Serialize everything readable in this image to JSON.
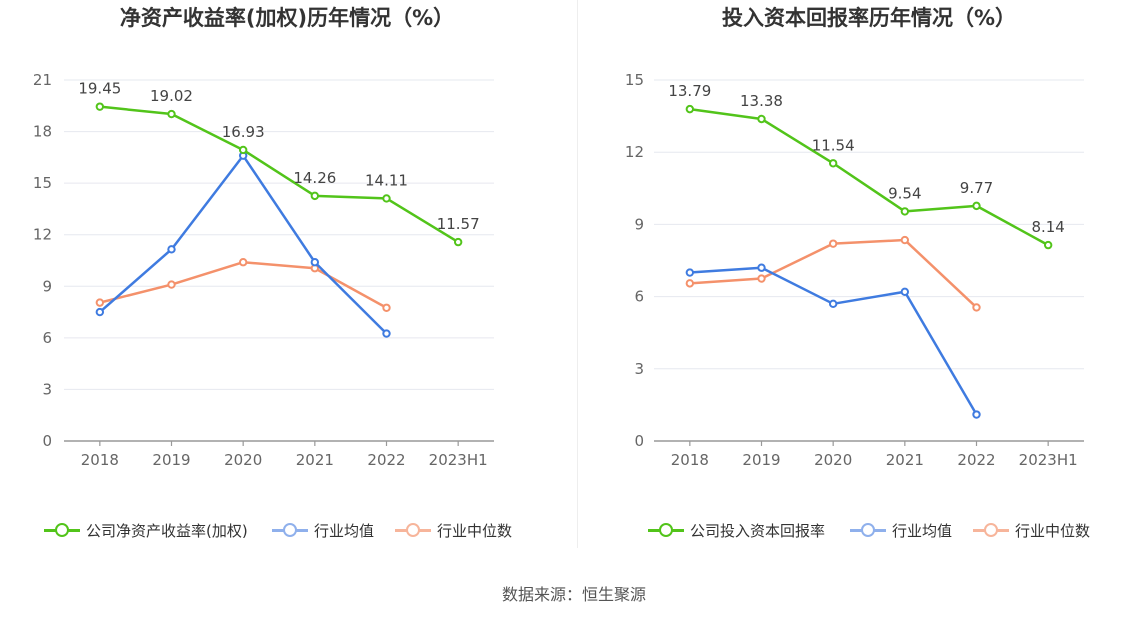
{
  "colors": {
    "company": "#52c41a",
    "industry_avg": "#3f7be0",
    "industry_median": "#f4916b"
  },
  "source": "数据来源：恒生聚源",
  "chart_data": [
    {
      "type": "line",
      "title": "净资产收益率(加权)历年情况（%）",
      "categories": [
        "2018",
        "2019",
        "2020",
        "2021",
        "2022",
        "2023H1"
      ],
      "ylim": [
        0,
        21
      ],
      "yticks": [
        "0",
        "3",
        "6",
        "9",
        "12",
        "15",
        "18",
        "21"
      ],
      "grid": true,
      "legend_position": "bottom",
      "series": [
        {
          "name": "公司净资产收益率(加权)",
          "color": "#52c41a",
          "values": [
            19.45,
            19.02,
            16.93,
            14.26,
            14.11,
            11.57
          ],
          "labels": [
            "19.45",
            "19.02",
            "16.93",
            "14.26",
            "14.11",
            "11.57"
          ]
        },
        {
          "name": "行业均值",
          "color": "#3f7be0",
          "values": [
            7.5,
            11.15,
            16.6,
            10.4,
            6.25,
            null
          ]
        },
        {
          "name": "行业中位数",
          "color": "#f4916b",
          "values": [
            8.05,
            9.1,
            10.4,
            10.05,
            7.75,
            null
          ]
        }
      ]
    },
    {
      "type": "line",
      "title": "投入资本回报率历年情况（%）",
      "categories": [
        "2018",
        "2019",
        "2020",
        "2021",
        "2022",
        "2023H1"
      ],
      "ylim": [
        0,
        15
      ],
      "yticks": [
        "0",
        "3",
        "6",
        "9",
        "12",
        "15"
      ],
      "grid": true,
      "legend_position": "bottom",
      "series": [
        {
          "name": "公司投入资本回报率",
          "color": "#52c41a",
          "values": [
            13.79,
            13.38,
            11.54,
            9.54,
            9.77,
            8.14
          ],
          "labels": [
            "13.79",
            "13.38",
            "11.54",
            "9.54",
            "9.77",
            "8.14"
          ]
        },
        {
          "name": "行业均值",
          "color": "#3f7be0",
          "values": [
            7.0,
            7.2,
            5.7,
            6.2,
            1.1,
            null
          ]
        },
        {
          "name": "行业中位数",
          "color": "#f4916b",
          "values": [
            6.55,
            6.75,
            8.2,
            8.35,
            5.55,
            null
          ]
        }
      ]
    }
  ]
}
